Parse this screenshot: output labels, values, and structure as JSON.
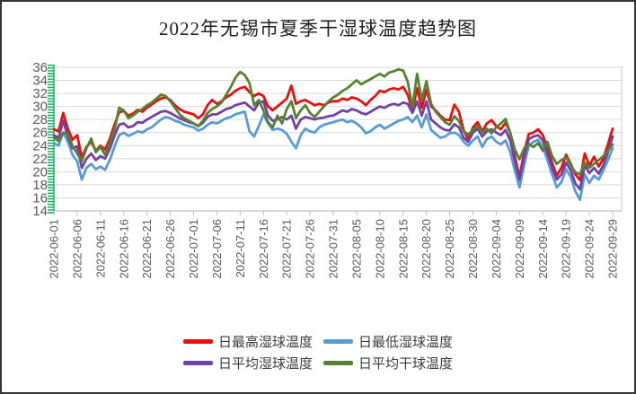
{
  "title": "2022年无锡市夏季干湿球温度趋势图",
  "chart_data": {
    "type": "line",
    "title": "2022年无锡市夏季干湿球温度趋势图",
    "x_start_date": "2022-06-01",
    "x_end_date": "2022-09-29",
    "x_step_days": 1,
    "x_tick_labels": [
      "2022-06-01",
      "2022-06-06",
      "2022-06-11",
      "2022-06-16",
      "2022-06-21",
      "2022-06-26",
      "2022-07-01",
      "2022-07-06",
      "2022-07-11",
      "2022-07-16",
      "2022-07-21",
      "2022-07-26",
      "2022-07-31",
      "2022-08-05",
      "2022-08-10",
      "2022-08-15",
      "2022-08-20",
      "2022-08-25",
      "2022-08-30",
      "2022-09-04",
      "2022-09-09",
      "2022-09-14",
      "2022-09-19",
      "2022-09-24",
      "2022-09-29"
    ],
    "x_tick_interval_days": 5,
    "y_ticks": [
      14,
      16,
      18,
      20,
      22,
      24,
      26,
      28,
      30,
      32,
      34,
      36
    ],
    "ylim": [
      14,
      36
    ],
    "xlabel": "",
    "ylabel": "",
    "grid": "horizontal",
    "legend_position": "bottom",
    "style_colors": {
      "gridline": "#d9d9d9",
      "axis_line": "#bfbfbf",
      "tick_labels": "#595959",
      "y_axis_ruler": "#00b050",
      "plot_right_border": "#c9c9c9"
    },
    "series": [
      {
        "name": "日最高湿球温度",
        "color": "#e8100c",
        "values": [
          26.5,
          26.2,
          29.0,
          26.6,
          24.9,
          25.6,
          22.2,
          23.8,
          24.6,
          23.2,
          24.0,
          23.4,
          25.0,
          27.2,
          29.1,
          29.3,
          28.6,
          28.9,
          29.5,
          29.2,
          29.8,
          30.3,
          30.8,
          31.2,
          31.4,
          31.0,
          30.2,
          29.6,
          29.2,
          29.0,
          28.8,
          28.2,
          28.8,
          30.2,
          31.0,
          30.4,
          30.8,
          31.4,
          31.8,
          32.4,
          32.8,
          33.0,
          32.2,
          31.6,
          32.0,
          31.6,
          30.0,
          29.4,
          30.0,
          30.6,
          31.2,
          33.2,
          30.4,
          30.8,
          31.0,
          30.6,
          30.2,
          30.4,
          30.2,
          30.6,
          30.8,
          30.8,
          31.2,
          31.0,
          31.4,
          31.2,
          30.8,
          30.2,
          31.0,
          31.6,
          32.4,
          32.2,
          32.6,
          32.8,
          32.6,
          33.0,
          31.8,
          29.4,
          32.8,
          29.8,
          32.6,
          30.0,
          29.4,
          28.6,
          28.0,
          27.9,
          30.3,
          29.2,
          26.4,
          24.9,
          26.8,
          27.6,
          26.2,
          27.4,
          27.9,
          27.0,
          26.5,
          27.5,
          26.0,
          22.4,
          19.2,
          23.0,
          25.8,
          26.0,
          26.5,
          25.6,
          23.6,
          21.4,
          19.4,
          20.6,
          22.6,
          21.2,
          19.6,
          18.7,
          22.8,
          20.9,
          22.3,
          20.8,
          22.0,
          24.2,
          26.6
        ]
      },
      {
        "name": "日最低湿球温度",
        "color": "#5b9bd5",
        "values": [
          24.4,
          24.0,
          26.0,
          24.6,
          22.6,
          21.6,
          18.8,
          20.6,
          21.2,
          20.4,
          20.8,
          20.3,
          21.8,
          23.8,
          25.6,
          26.0,
          25.5,
          25.8,
          26.2,
          26.0,
          26.5,
          26.8,
          27.4,
          28.0,
          28.4,
          28.2,
          27.8,
          27.6,
          27.2,
          27.0,
          26.8,
          26.3,
          26.6,
          27.2,
          27.6,
          27.4,
          27.8,
          28.2,
          28.4,
          28.8,
          29.0,
          29.2,
          26.2,
          25.4,
          27.0,
          28.8,
          27.4,
          26.4,
          26.6,
          26.4,
          25.8,
          24.6,
          23.6,
          25.6,
          26.6,
          26.2,
          26.0,
          26.8,
          27.2,
          27.4,
          27.6,
          27.8,
          28.0,
          27.6,
          27.8,
          27.4,
          26.8,
          25.9,
          26.2,
          26.8,
          27.2,
          26.6,
          27.0,
          27.4,
          27.8,
          28.0,
          28.4,
          27.6,
          28.6,
          26.8,
          28.8,
          26.4,
          25.8,
          25.2,
          25.4,
          25.9,
          26.0,
          25.6,
          24.6,
          24.0,
          24.8,
          25.4,
          23.8,
          25.0,
          25.4,
          24.6,
          24.2,
          24.8,
          23.0,
          20.2,
          17.6,
          21.0,
          24.0,
          24.6,
          24.9,
          23.8,
          21.8,
          19.6,
          17.6,
          18.4,
          20.4,
          19.2,
          17.0,
          15.7,
          19.6,
          18.3,
          19.4,
          18.8,
          20.2,
          21.8,
          23.6
        ]
      },
      {
        "name": "日平均湿球温度",
        "color": "#7341a5",
        "values": [
          25.6,
          25.2,
          27.8,
          25.4,
          23.6,
          23.9,
          20.6,
          22.0,
          22.8,
          21.8,
          22.4,
          22.0,
          23.5,
          25.5,
          27.2,
          27.4,
          26.8,
          27.0,
          27.6,
          27.5,
          28.0,
          28.4,
          28.8,
          29.2,
          29.3,
          29.0,
          28.6,
          28.2,
          27.9,
          27.6,
          27.4,
          27.0,
          27.5,
          28.4,
          28.8,
          28.8,
          29.2,
          29.6,
          29.8,
          30.2,
          30.4,
          30.6,
          30.0,
          29.4,
          30.6,
          30.8,
          28.6,
          27.8,
          28.0,
          28.4,
          28.0,
          28.6,
          26.6,
          28.0,
          28.4,
          28.2,
          28.0,
          28.2,
          28.3,
          28.5,
          28.6,
          29.0,
          29.4,
          29.2,
          29.6,
          29.4,
          29.0,
          28.8,
          29.2,
          29.6,
          30.0,
          29.8,
          30.2,
          30.4,
          30.2,
          30.6,
          30.4,
          29.0,
          30.8,
          28.6,
          30.8,
          28.0,
          27.4,
          26.8,
          26.4,
          26.3,
          27.3,
          26.8,
          25.2,
          24.6,
          26.0,
          26.6,
          25.4,
          26.2,
          26.5,
          26.0,
          25.6,
          26.4,
          24.8,
          21.6,
          18.8,
          22.2,
          25.0,
          25.4,
          25.6,
          24.8,
          22.8,
          20.6,
          18.8,
          19.6,
          21.4,
          20.2,
          18.2,
          17.3,
          21.0,
          19.8,
          20.6,
          19.7,
          21.0,
          23.0,
          25.4
        ]
      },
      {
        "name": "日平均干球温度",
        "color": "#578233",
        "values": [
          25.2,
          24.7,
          26.0,
          25.8,
          24.0,
          22.8,
          21.6,
          23.6,
          25.1,
          23.0,
          23.8,
          22.6,
          24.4,
          26.4,
          29.8,
          29.4,
          28.2,
          28.6,
          29.2,
          29.6,
          30.2,
          30.6,
          31.2,
          31.8,
          31.6,
          30.8,
          29.8,
          28.8,
          28.2,
          27.8,
          27.4,
          27.0,
          27.8,
          29.0,
          29.6,
          30.0,
          30.6,
          31.8,
          33.0,
          34.4,
          35.3,
          34.8,
          33.6,
          30.2,
          31.0,
          29.4,
          27.6,
          26.8,
          28.6,
          27.4,
          29.6,
          30.8,
          28.2,
          29.4,
          30.2,
          29.0,
          28.4,
          29.2,
          30.0,
          30.8,
          31.4,
          31.8,
          32.4,
          32.8,
          33.4,
          34.0,
          33.4,
          33.8,
          34.2,
          34.6,
          35.0,
          34.6,
          35.2,
          35.4,
          35.7,
          35.5,
          33.8,
          29.9,
          35.0,
          31.0,
          33.9,
          30.4,
          29.2,
          28.4,
          27.6,
          27.2,
          28.5,
          27.8,
          26.2,
          25.7,
          26.4,
          27.0,
          26.0,
          26.6,
          25.9,
          26.8,
          27.4,
          28.1,
          26.0,
          23.4,
          21.9,
          23.6,
          24.2,
          23.8,
          24.4,
          23.2,
          24.6,
          22.4,
          21.2,
          21.8,
          22.2,
          21.0,
          19.9,
          19.6,
          21.4,
          20.6,
          21.2,
          21.8,
          22.4,
          23.2,
          24.2
        ]
      }
    ]
  }
}
